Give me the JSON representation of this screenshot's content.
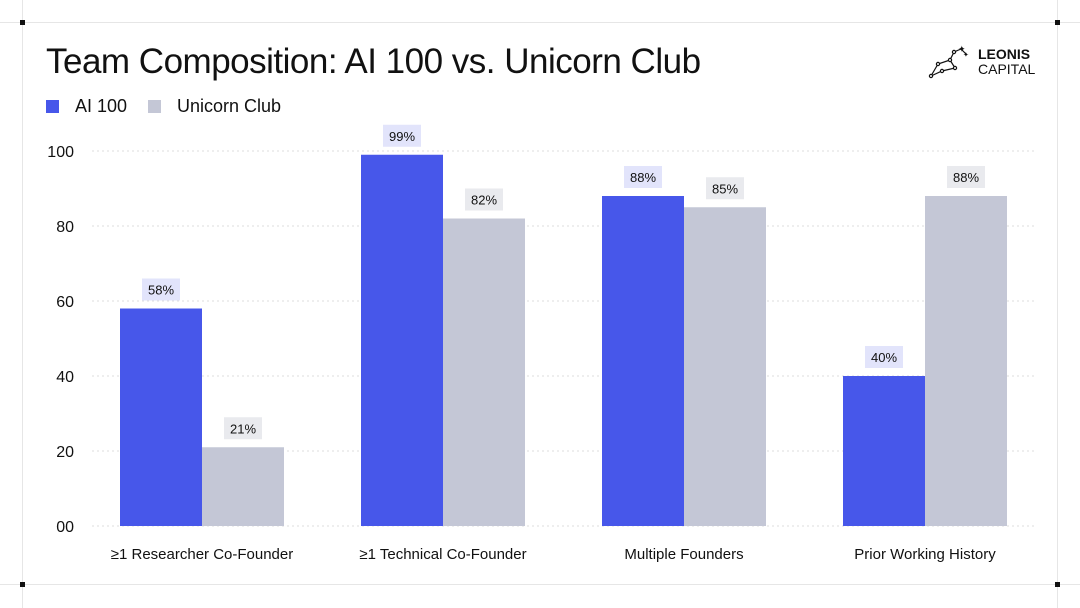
{
  "chart_data": {
    "type": "bar",
    "title": "Team Composition: AI 100 vs. Unicorn Club",
    "categories": [
      "≥1 Researcher Co-Founder",
      "≥1 Technical Co-Founder",
      "Multiple Founders",
      "Prior Working History"
    ],
    "series": [
      {
        "name": "AI 100",
        "values": [
          58,
          99,
          88,
          40
        ],
        "labels": [
          "58%",
          "99%",
          "88%",
          "40%"
        ],
        "color": "#4757ea",
        "label_bg": "#e2e4fb"
      },
      {
        "name": "Unicorn Club",
        "values": [
          21,
          82,
          85,
          88
        ],
        "labels": [
          "21%",
          "82%",
          "85%",
          "88%"
        ],
        "color": "#c4c7d6",
        "label_bg": "#e9eaee"
      }
    ],
    "yticks": [
      "00",
      "20",
      "40",
      "60",
      "80",
      "100"
    ],
    "ylim": [
      0,
      100
    ],
    "grid": true,
    "legend": "top-left",
    "xlabel": "",
    "ylabel": ""
  },
  "logo": {
    "line1": "LEONIS",
    "line2": "CAPITAL"
  }
}
